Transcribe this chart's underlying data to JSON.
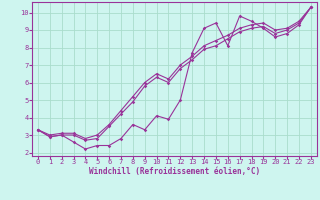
{
  "xlabel": "Windchill (Refroidissement éolien,°C)",
  "bg_color": "#cef5ef",
  "grid_color": "#aaddcc",
  "line_color": "#993399",
  "marker": "D",
  "markersize": 1.8,
  "linewidth": 0.8,
  "xlim": [
    -0.5,
    23.5
  ],
  "ylim": [
    1.8,
    10.6
  ],
  "xticks": [
    0,
    1,
    2,
    3,
    4,
    5,
    6,
    7,
    8,
    9,
    10,
    11,
    12,
    13,
    14,
    15,
    16,
    17,
    18,
    19,
    20,
    21,
    22,
    23
  ],
  "yticks": [
    2,
    3,
    4,
    5,
    6,
    7,
    8,
    9,
    10
  ],
  "line1_x": [
    0,
    1,
    2,
    3,
    4,
    5,
    6,
    7,
    8,
    9,
    10,
    11,
    12,
    13,
    14,
    15,
    16,
    17,
    18,
    19,
    20,
    21,
    22,
    23
  ],
  "line1_y": [
    3.3,
    2.9,
    3.0,
    2.6,
    2.2,
    2.4,
    2.4,
    2.8,
    3.6,
    3.3,
    4.1,
    3.9,
    5.0,
    7.7,
    9.1,
    9.4,
    8.1,
    9.8,
    9.5,
    9.1,
    8.6,
    8.8,
    9.3,
    10.3
  ],
  "line2_x": [
    0,
    1,
    2,
    3,
    4,
    5,
    6,
    7,
    8,
    9,
    10,
    11,
    12,
    13,
    14,
    15,
    16,
    17,
    18,
    19,
    20,
    21,
    22,
    23
  ],
  "line2_y": [
    3.3,
    2.9,
    3.0,
    3.0,
    2.7,
    2.8,
    3.5,
    4.2,
    4.9,
    5.8,
    6.3,
    6.0,
    6.8,
    7.3,
    7.9,
    8.1,
    8.5,
    8.9,
    9.1,
    9.2,
    8.8,
    9.0,
    9.4,
    10.3
  ],
  "line3_x": [
    0,
    1,
    2,
    3,
    4,
    5,
    6,
    7,
    8,
    9,
    10,
    11,
    12,
    13,
    14,
    15,
    16,
    17,
    18,
    19,
    20,
    21,
    22,
    23
  ],
  "line3_y": [
    3.3,
    3.0,
    3.1,
    3.1,
    2.8,
    3.0,
    3.6,
    4.4,
    5.2,
    6.0,
    6.5,
    6.2,
    7.0,
    7.5,
    8.1,
    8.4,
    8.7,
    9.1,
    9.3,
    9.4,
    9.0,
    9.1,
    9.5,
    10.3
  ],
  "tick_color": "#993399",
  "spine_color": "#993399",
  "tick_fontsize": 5.0,
  "xlabel_fontsize": 5.5
}
